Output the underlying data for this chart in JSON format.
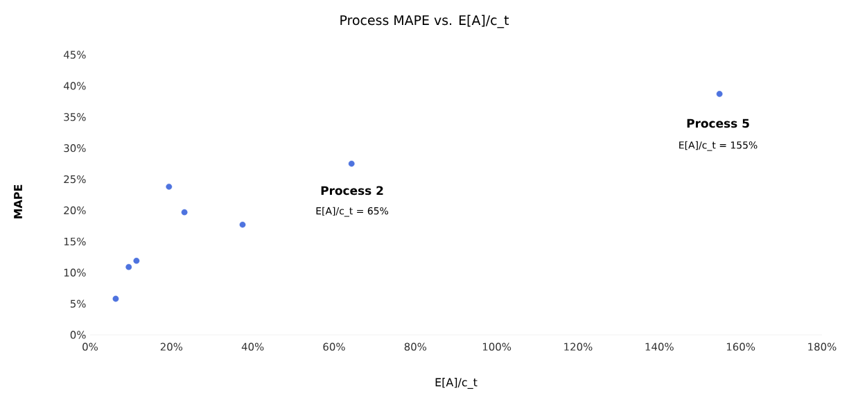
{
  "chart_data": {
    "type": "scatter",
    "title": "Process MAPE vs. E[A]/c_t",
    "xlabel": "E[A]/c_t",
    "ylabel": "MAPE",
    "x": [
      6.3,
      9.5,
      11.4,
      19.4,
      23.2,
      37.5,
      64.3,
      154.8
    ],
    "series": [
      {
        "color": "#4e73df",
        "values": [
          5.8,
          10.9,
          11.9,
          23.8,
          19.7,
          17.7,
          27.5,
          38.7
        ]
      }
    ],
    "xlim": [
      0,
      180
    ],
    "ylim": [
      0,
      45
    ],
    "xticks": [
      {
        "value": 0,
        "label": "0%"
      },
      {
        "value": 20,
        "label": "20%"
      },
      {
        "value": 40,
        "label": "40%"
      },
      {
        "value": 60,
        "label": "60%"
      },
      {
        "value": 80,
        "label": "80%"
      },
      {
        "value": 100,
        "label": "100%"
      },
      {
        "value": 120,
        "label": "120%"
      },
      {
        "value": 140,
        "label": "140%"
      },
      {
        "value": 160,
        "label": "160%"
      },
      {
        "value": 180,
        "label": "180%"
      }
    ],
    "yticks": [
      {
        "value": 0,
        "label": "0%"
      },
      {
        "value": 5,
        "label": "5%"
      },
      {
        "value": 10,
        "label": "10%"
      },
      {
        "value": 15,
        "label": "15%"
      },
      {
        "value": 20,
        "label": "20%"
      },
      {
        "value": 25,
        "label": "25%"
      },
      {
        "value": 30,
        "label": "30%"
      },
      {
        "value": 35,
        "label": "35%"
      },
      {
        "value": 40,
        "label": "40%"
      },
      {
        "value": 45,
        "label": "45%"
      }
    ],
    "annotations": [
      "Process 2",
      "E[A]/c_t = 65%",
      "Process 5",
      "E[A]/c_t = 155%"
    ]
  }
}
